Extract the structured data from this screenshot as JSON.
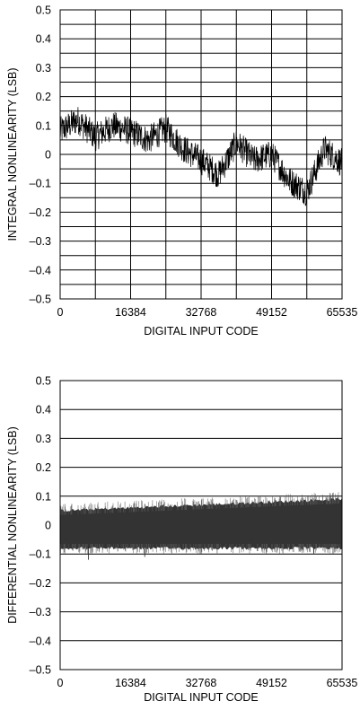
{
  "chart_data": [
    {
      "type": "line",
      "title": "",
      "xlabel": "DIGITAL INPUT CODE",
      "ylabel": "INTEGRAL NONLINEARITY (LSB)",
      "xlim": [
        0,
        65535
      ],
      "ylim": [
        -0.5,
        0.5
      ],
      "xticks": [
        0,
        16384,
        32768,
        49152,
        65535
      ],
      "xtick_labels": [
        "0",
        "16384",
        "32768",
        "49152",
        "65535"
      ],
      "yticks": [
        -0.5,
        -0.4,
        -0.3,
        -0.2,
        -0.1,
        0,
        0.1,
        0.2,
        0.3,
        0.4,
        0.5
      ],
      "ytick_labels": [
        "–0.5",
        "–0.4",
        "–0.3",
        "–0.2",
        "–0.1",
        "0",
        "0.1",
        "0.2",
        "0.3",
        "0.4",
        "0.5"
      ],
      "grid": true,
      "grid_columns": 8,
      "grid_rows": 20,
      "series": [
        {
          "color": "#000000",
          "noise_band": 0.05,
          "x": [
            0,
            4096,
            8192,
            12288,
            16384,
            20480,
            24576,
            28672,
            32768,
            36864,
            40960,
            45056,
            49152,
            53248,
            57344,
            61440,
            65535
          ],
          "y": [
            0.08,
            0.12,
            0.06,
            0.1,
            0.08,
            0.05,
            0.09,
            0.02,
            -0.02,
            -0.07,
            0.04,
            -0.02,
            0.0,
            -0.09,
            -0.13,
            0.02,
            -0.03
          ]
        }
      ]
    },
    {
      "type": "line",
      "title": "",
      "xlabel": "DIGITAL INPUT CODE",
      "ylabel": "DIFFERENTIAL NONLINEARITY (LSB)",
      "xlim": [
        0,
        65535
      ],
      "ylim": [
        -0.5,
        0.5
      ],
      "xticks": [
        0,
        16384,
        32768,
        49152,
        65535
      ],
      "xtick_labels": [
        "0",
        "16384",
        "32768",
        "49152",
        "65535"
      ],
      "yticks": [
        -0.5,
        -0.4,
        -0.3,
        -0.2,
        -0.1,
        0,
        0.1,
        0.2,
        0.3,
        0.4,
        0.5
      ],
      "ytick_labels": [
        "–0.5",
        "–0.4",
        "–0.3",
        "–0.2",
        "–0.1",
        "0",
        "0.1",
        "0.2",
        "0.3",
        "0.4",
        "0.5"
      ],
      "grid": true,
      "grid_columns": 1,
      "grid_rows": 10,
      "series": [
        {
          "color": "#333333",
          "noise_band": 0.03,
          "x": [
            0,
            16384,
            32768,
            49152,
            65535
          ],
          "y_upper": [
            0.045,
            0.055,
            0.065,
            0.075,
            0.085
          ],
          "y_lower": [
            -0.075,
            -0.075,
            -0.075,
            -0.075,
            -0.075
          ],
          "spikes": [
            -0.12,
            -0.11,
            -0.1,
            -0.09,
            -0.1
          ]
        }
      ]
    }
  ]
}
